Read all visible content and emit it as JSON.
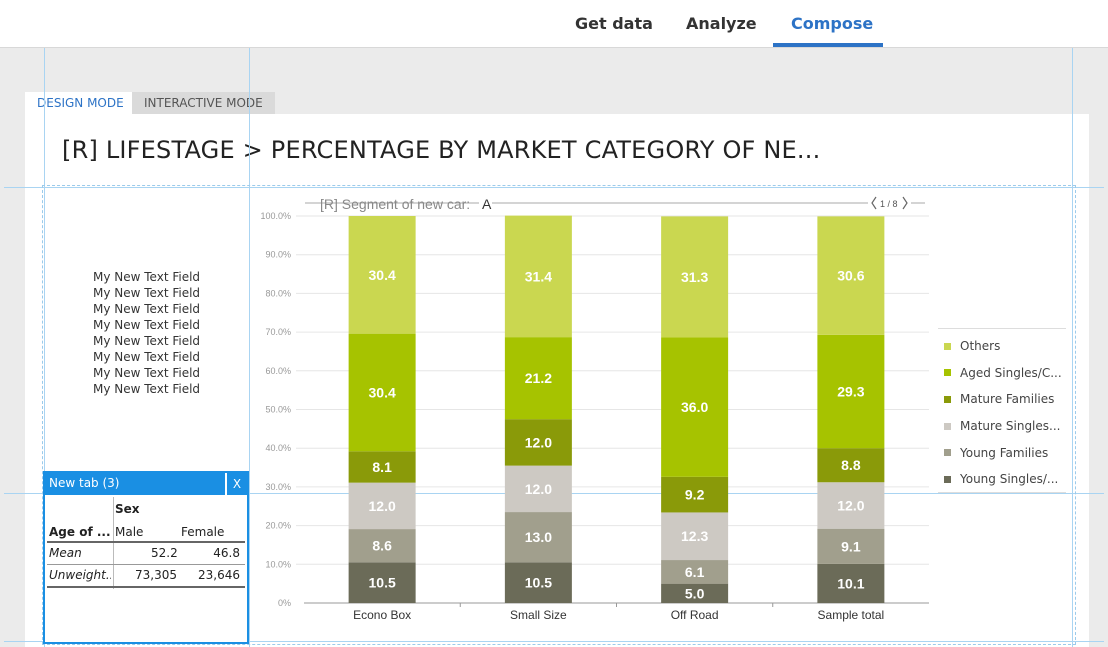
{
  "nav": {
    "items": [
      {
        "label": "Get data",
        "active": false
      },
      {
        "label": "Analyze",
        "active": false
      },
      {
        "label": "Compose",
        "active": true
      }
    ]
  },
  "mode_tabs": {
    "design": "DESIGN MODE",
    "interactive": "INTERACTIVE MODE"
  },
  "page_title": "[R] LIFESTAGE > PERCENTAGE BY MARKET CATEGORY OF NE...",
  "text_field": {
    "lines": [
      "My New Text Field",
      "My New Text Field",
      "My New Text Field",
      "My New Text Field",
      "My New Text Field",
      "My New Text Field",
      "My New Text Field",
      "My New Text Field"
    ]
  },
  "crosstab": {
    "tab_label": "New tab (3)",
    "close_label": "X",
    "col_var": "Sex",
    "row_var": "Age of ...",
    "columns": [
      "Male",
      "Female"
    ],
    "rows": [
      {
        "label": "Mean",
        "values": [
          "52.2",
          "46.8"
        ]
      },
      {
        "label": "Unweight...",
        "values": [
          "73,305",
          "23,646"
        ]
      }
    ]
  },
  "chart_header": {
    "filter_label": "[R] Segment of new car:",
    "filter_value": "A",
    "pager": "1 / 8",
    "prev_icon": "chevron-left-icon",
    "next_icon": "chevron-right-icon"
  },
  "chart_data": {
    "type": "bar",
    "stacked": true,
    "categories": [
      "Econo Box",
      "Small Size",
      "Off Road",
      "Sample total"
    ],
    "yticks": [
      "0%",
      "10.0%",
      "20.0%",
      "30.0%",
      "40.0%",
      "50.0%",
      "60.0%",
      "70.0%",
      "80.0%",
      "90.0%",
      "100.0%"
    ],
    "ylim": [
      0,
      100
    ],
    "legend_position": "right",
    "series": [
      {
        "name": "Young Singles/...",
        "color": "#6b6b58",
        "values": [
          10.5,
          10.5,
          5.0,
          10.1
        ]
      },
      {
        "name": "Young Families",
        "color": "#a19f8d",
        "values": [
          8.6,
          13.0,
          6.1,
          9.1
        ]
      },
      {
        "name": "Mature Singles...",
        "color": "#cdc9c3",
        "values": [
          12.0,
          12.0,
          12.3,
          12.0
        ]
      },
      {
        "name": "Mature Families",
        "color": "#8a9a09",
        "values": [
          8.1,
          12.0,
          9.2,
          8.8
        ]
      },
      {
        "name": "Aged Singles/C...",
        "color": "#a6c300",
        "values": [
          30.4,
          21.2,
          36.0,
          29.3
        ]
      },
      {
        "name": "Others",
        "color": "#cad750",
        "values": [
          30.4,
          31.4,
          31.3,
          30.6
        ]
      }
    ]
  }
}
